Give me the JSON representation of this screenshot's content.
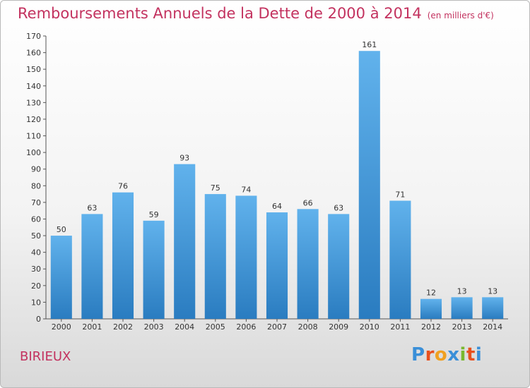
{
  "header": {
    "title": "Remboursements Annuels de la Dette de 2000 à 2014",
    "unit": "(en milliers d'€)"
  },
  "footer": {
    "commune": "BIRIEUX",
    "logo_letters": [
      "P",
      "r",
      "o",
      "x",
      "i",
      "t",
      "i"
    ]
  },
  "colors": {
    "title": "#c3325f",
    "bar_top": "#61b2ec",
    "bar_bottom": "#2a7cc0",
    "logo": [
      "#3a8fd8",
      "#e8501e",
      "#f0a020",
      "#3a8fd8",
      "#7ab82e",
      "#e8501e",
      "#3a8fd8"
    ]
  },
  "chart_data": {
    "type": "bar",
    "title": "Remboursements Annuels de la Dette de 2000 à 2014",
    "subtitle": "(en milliers d'€)",
    "xlabel": "",
    "ylabel": "",
    "categories": [
      "2000",
      "2001",
      "2002",
      "2003",
      "2004",
      "2005",
      "2006",
      "2007",
      "2008",
      "2009",
      "2010",
      "2011",
      "2012",
      "2013",
      "2014"
    ],
    "values": [
      50,
      63,
      76,
      59,
      93,
      75,
      74,
      64,
      66,
      63,
      161,
      71,
      12,
      13,
      13
    ],
    "ylim": [
      0,
      170
    ],
    "yticks": [
      0,
      10,
      20,
      30,
      40,
      50,
      60,
      70,
      80,
      90,
      100,
      110,
      120,
      130,
      140,
      150,
      160,
      170
    ],
    "grid": false,
    "legend": "none"
  }
}
